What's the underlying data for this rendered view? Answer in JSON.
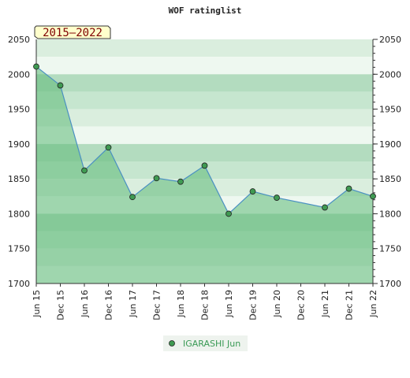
{
  "chart_data": {
    "type": "area",
    "title": "WOF ratinglist",
    "badge": "2015–2022",
    "x_ticks": [
      "Jun 15",
      "Dec 15",
      "Jun 16",
      "Dec 16",
      "Jun 17",
      "Dec 17",
      "Jun 18",
      "Dec 18",
      "Jun 19",
      "Dec 19",
      "Jun 20",
      "Dec 20",
      "Jun 21",
      "Dec 21",
      "Jun 22"
    ],
    "ylim": [
      1700,
      2050
    ],
    "y_ticks": [
      1700,
      1750,
      1800,
      1850,
      1900,
      1950,
      2000,
      2050
    ],
    "series": [
      {
        "name": "IGARASHI Jun",
        "x": [
          "Jun 15",
          "Dec 15",
          "Jun 16",
          "Dec 16",
          "Jun 17",
          "Dec 17",
          "Jun 18",
          "Dec 18",
          "Jun 19",
          "Dec 19",
          "Jun 20",
          "Jun 21",
          "Dec 21",
          "Jun 22"
        ],
        "values": [
          2011,
          1984,
          1862,
          1895,
          1824,
          1851,
          1846,
          1869,
          1800,
          1832,
          1823,
          1809,
          1836,
          1825
        ]
      }
    ],
    "legend_position": "bottom",
    "colors": {
      "line": "#4a90c2",
      "marker": "#3f9a52",
      "fill": "#5fba78"
    }
  }
}
